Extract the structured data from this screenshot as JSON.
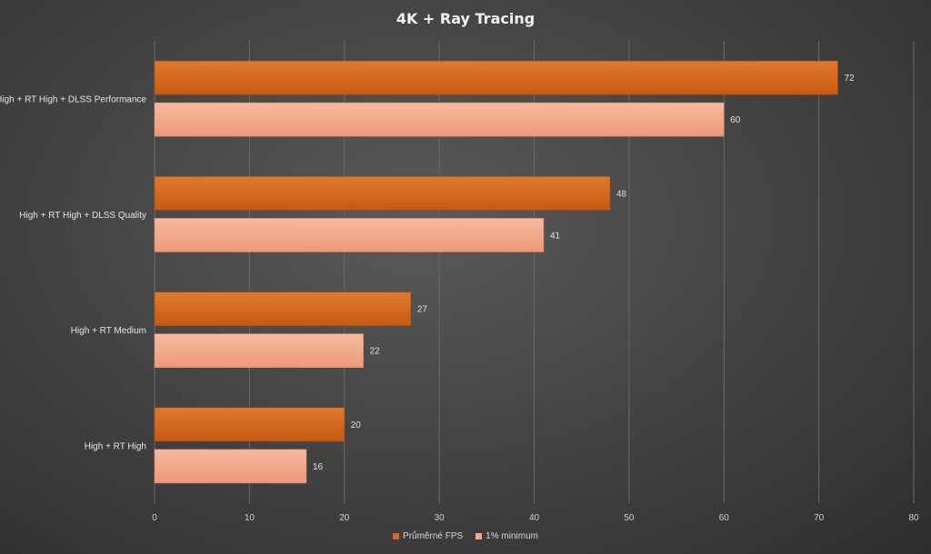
{
  "chart_data": {
    "type": "bar",
    "orientation": "horizontal",
    "title": "4K + Ray Tracing",
    "categories": [
      "High + RT High + DLSS Performance",
      "High + RT High + DLSS Quality",
      "High + RT Medium",
      "High + RT High"
    ],
    "series": [
      {
        "name": "Průměrné FPS",
        "color": "#d9691f",
        "values": [
          72,
          48,
          27,
          20
        ]
      },
      {
        "name": "1% minimum",
        "color": "#f4a98a",
        "values": [
          60,
          41,
          22,
          16
        ]
      }
    ],
    "xlim": [
      0,
      80
    ],
    "xticks": [
      0,
      10,
      20,
      30,
      40,
      50,
      60,
      70,
      80
    ],
    "grid": "vertical",
    "legend_position": "bottom",
    "data_labels": true
  }
}
